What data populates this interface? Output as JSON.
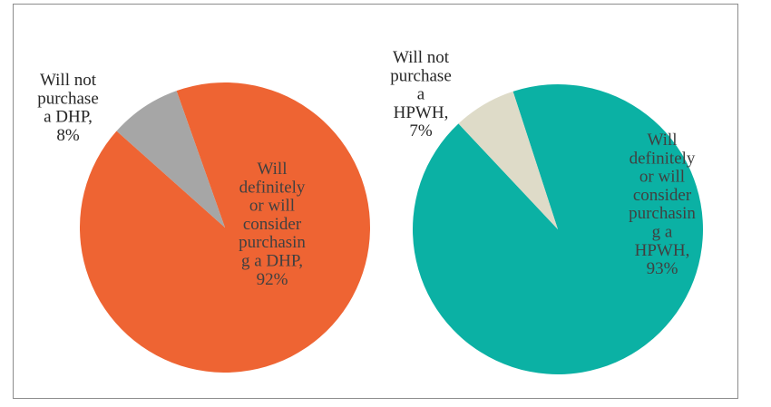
{
  "chart_data": [
    {
      "type": "pie",
      "colors": {
        "main": "#EE6433",
        "minor": "#A6A6A6",
        "main_label": "#404040",
        "minor_label": "#262626"
      },
      "slices": [
        {
          "value": 92,
          "label_lines": [
            "Will",
            "definitely",
            "or will",
            "consider",
            "purchasin",
            "g a DHP,",
            "92%"
          ]
        },
        {
          "value": 8,
          "label_lines": [
            "Will not",
            "purchase",
            "a DHP,",
            "8%"
          ]
        }
      ]
    },
    {
      "type": "pie",
      "colors": {
        "main": "#0BB1A4",
        "minor": "#DEDBC8",
        "main_label": "#404040",
        "minor_label": "#262626"
      },
      "slices": [
        {
          "value": 93,
          "label_lines": [
            "Will",
            "definitely",
            "or will",
            "consider",
            "purchasin",
            "g a",
            "HPWH,",
            "93%"
          ]
        },
        {
          "value": 7,
          "label_lines": [
            "Will not",
            "purchase",
            "a",
            "HPWH,",
            "7%"
          ]
        }
      ]
    }
  ]
}
